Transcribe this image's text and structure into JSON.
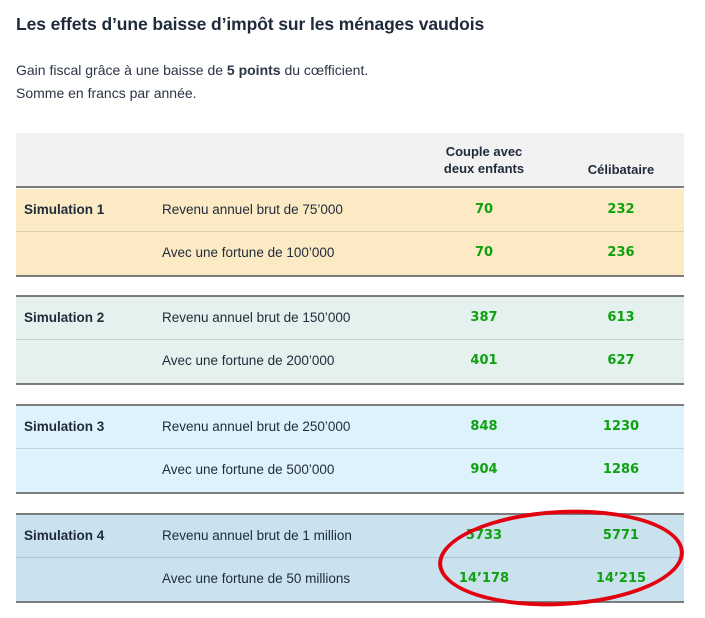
{
  "title": "Les effets d’une baisse d’impôt sur les ménages vaudois",
  "subtitle_line1_a": "Gain fiscal grâce à une baisse de ",
  "subtitle_line1_bold": "5 points",
  "subtitle_line1_b": " du cœfficient.",
  "subtitle_line2": "Somme en francs par année.",
  "columns": {
    "couple_line1": "Couple avec",
    "couple_line2": "deux enfants",
    "single": "Célibataire"
  },
  "colors": {
    "sim1_bg": "#fbeac3",
    "sim2_bg": "#e4f1ee",
    "sim3_bg": "#ddf2fb",
    "sim4_bg": "#c9e2ee",
    "value_green": "#0fa10f",
    "highlight_red": "#e3000f"
  },
  "simulations": [
    {
      "label": "Simulation 1",
      "rows": [
        {
          "label": "Revenu annuel brut de 75’000",
          "couple": "70",
          "single": "232"
        },
        {
          "label": "Avec une fortune de 100’000",
          "couple": "70",
          "single": "236"
        }
      ]
    },
    {
      "label": "Simulation 2",
      "rows": [
        {
          "label": "Revenu annuel brut de 150’000",
          "couple": "387",
          "single": "613"
        },
        {
          "label": "Avec une fortune de 200’000",
          "couple": "401",
          "single": "627"
        }
      ]
    },
    {
      "label": "Simulation 3",
      "rows": [
        {
          "label": "Revenu annuel brut de 250’000",
          "couple": "848",
          "single": "1230"
        },
        {
          "label": "Avec une fortune de 500’000",
          "couple": "904",
          "single": "1286"
        }
      ]
    },
    {
      "label": "Simulation 4",
      "rows": [
        {
          "label": "Revenu annuel brut de 1 million",
          "couple": "5733",
          "single": "5771"
        },
        {
          "label": "Avec une fortune de 50 millions",
          "couple": "14’178",
          "single": "14’215"
        }
      ]
    }
  ]
}
